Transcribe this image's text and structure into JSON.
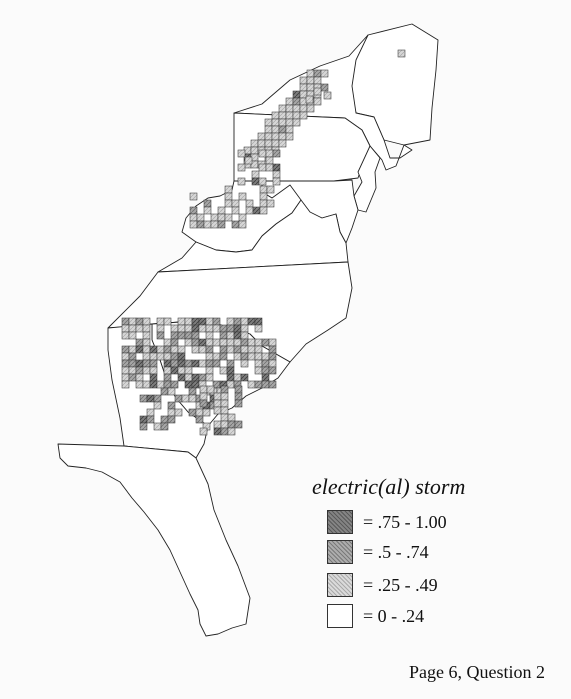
{
  "legend": {
    "title": "electric(al) storm",
    "items": [
      {
        "label": "= .75 - 1.00",
        "level": "high",
        "color": "#7c7c7c"
      },
      {
        "label": "= .5 - .74",
        "level": "upper-mid",
        "color": "#a6a6a6"
      },
      {
        "label": "= .25 - .49",
        "level": "lower-mid",
        "color": "#d0d0d0"
      },
      {
        "label": "= 0 - .24",
        "level": "low",
        "color": "#ffffff"
      }
    ]
  },
  "footer": {
    "page_ref": "Page 6, Question 2"
  }
}
